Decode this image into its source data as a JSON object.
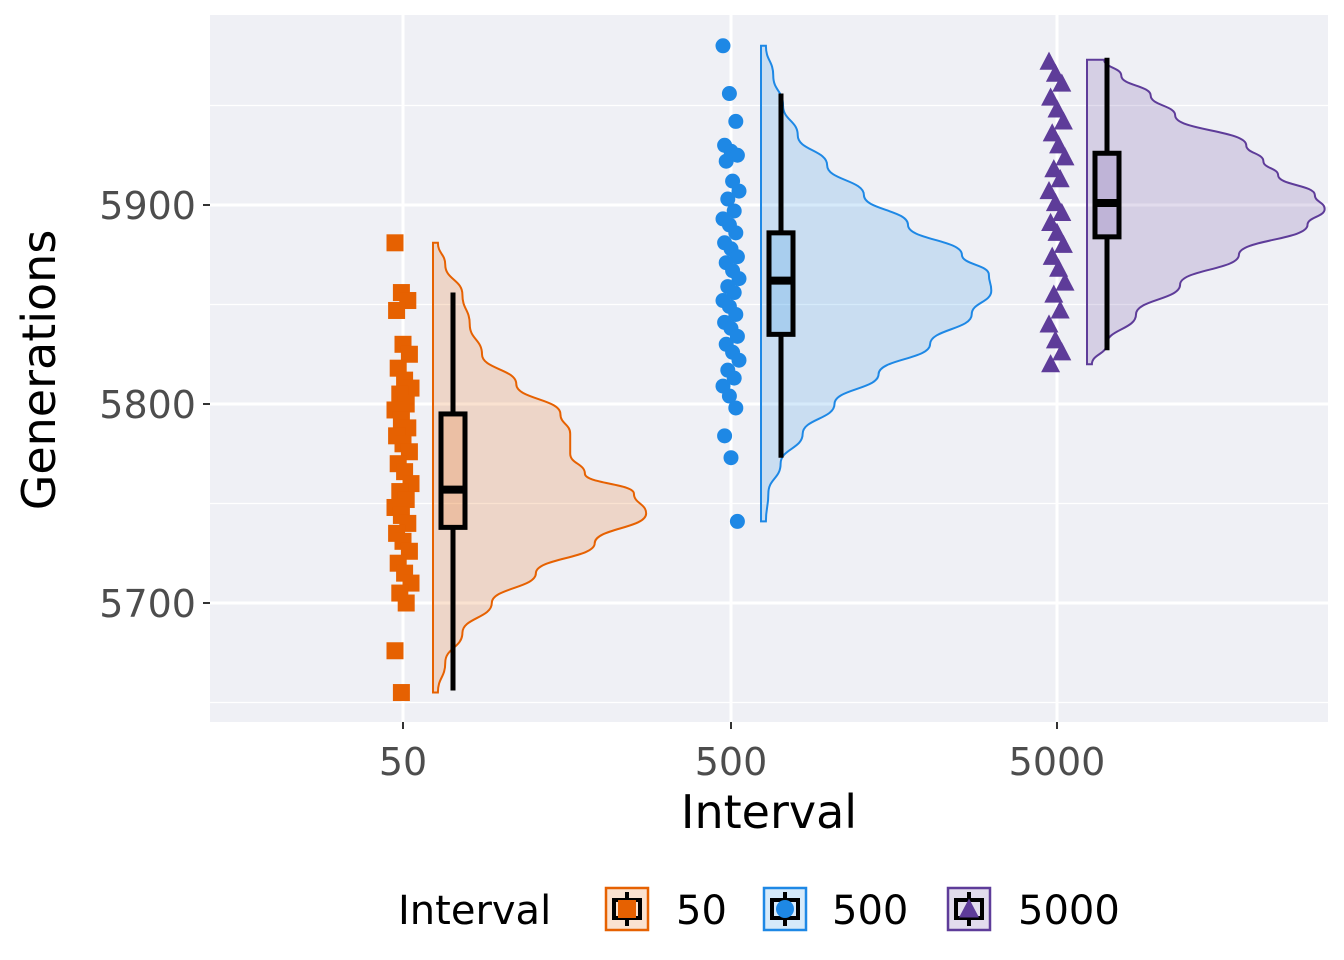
{
  "chart_data": {
    "type": "raincloud",
    "xlabel": "Interval",
    "ylabel": "Generations",
    "categories": [
      "50",
      "500",
      "5000"
    ],
    "y_ticks": [
      5700,
      5800,
      5900
    ],
    "ylim": [
      5640,
      5995
    ],
    "grid": true,
    "legend": {
      "title": "Interval",
      "position": "bottom",
      "entries": [
        "50",
        "500",
        "5000"
      ]
    },
    "series": [
      {
        "name": "50",
        "color": "#e66101",
        "marker": "square",
        "points": [
          5881,
          5856,
          5852,
          5847,
          5830,
          5825,
          5818,
          5812,
          5808,
          5805,
          5800,
          5797,
          5792,
          5788,
          5784,
          5780,
          5776,
          5770,
          5766,
          5760,
          5756,
          5752,
          5748,
          5744,
          5740,
          5735,
          5731,
          5726,
          5720,
          5715,
          5710,
          5705,
          5700,
          5676,
          5655
        ],
        "density": [
          [
            5655,
            0.02
          ],
          [
            5670,
            0.05
          ],
          [
            5685,
            0.12
          ],
          [
            5700,
            0.24
          ],
          [
            5715,
            0.42
          ],
          [
            5730,
            0.66
          ],
          [
            5745,
            0.87
          ],
          [
            5755,
            0.82
          ],
          [
            5765,
            0.62
          ],
          [
            5775,
            0.56
          ],
          [
            5785,
            0.56
          ],
          [
            5795,
            0.52
          ],
          [
            5810,
            0.34
          ],
          [
            5825,
            0.2
          ],
          [
            5840,
            0.15
          ],
          [
            5855,
            0.12
          ],
          [
            5870,
            0.05
          ],
          [
            5881,
            0.02
          ]
        ],
        "box": {
          "min": 5656,
          "q1": 5738,
          "median": 5757,
          "q3": 5795,
          "max": 5856
        }
      },
      {
        "name": "500",
        "color": "#1e88e5",
        "marker": "circle",
        "points": [
          5980,
          5956,
          5942,
          5930,
          5927,
          5925,
          5922,
          5912,
          5907,
          5903,
          5897,
          5893,
          5890,
          5886,
          5881,
          5878,
          5874,
          5871,
          5867,
          5863,
          5859,
          5856,
          5852,
          5849,
          5845,
          5841,
          5838,
          5834,
          5830,
          5826,
          5822,
          5817,
          5813,
          5809,
          5804,
          5798,
          5784,
          5773,
          5741
        ],
        "density": [
          [
            5741,
            0.02
          ],
          [
            5755,
            0.03
          ],
          [
            5770,
            0.08
          ],
          [
            5785,
            0.17
          ],
          [
            5800,
            0.3
          ],
          [
            5815,
            0.48
          ],
          [
            5830,
            0.69
          ],
          [
            5845,
            0.86
          ],
          [
            5857,
            0.94
          ],
          [
            5865,
            0.93
          ],
          [
            5875,
            0.82
          ],
          [
            5890,
            0.6
          ],
          [
            5905,
            0.42
          ],
          [
            5920,
            0.27
          ],
          [
            5935,
            0.15
          ],
          [
            5950,
            0.09
          ],
          [
            5965,
            0.05
          ],
          [
            5980,
            0.02
          ]
        ],
        "box": {
          "min": 5773,
          "q1": 5835,
          "median": 5862,
          "q3": 5886,
          "max": 5956
        }
      },
      {
        "name": "5000",
        "color": "#5e3c99",
        "marker": "triangle",
        "points": [
          5972,
          5966,
          5961,
          5954,
          5948,
          5942,
          5936,
          5930,
          5924,
          5918,
          5913,
          5907,
          5901,
          5896,
          5891,
          5886,
          5880,
          5874,
          5868,
          5861,
          5855,
          5847,
          5840,
          5832,
          5826,
          5820
        ],
        "density": [
          [
            5820,
            0.02
          ],
          [
            5830,
            0.08
          ],
          [
            5845,
            0.2
          ],
          [
            5860,
            0.38
          ],
          [
            5875,
            0.62
          ],
          [
            5890,
            0.9
          ],
          [
            5898,
            0.97
          ],
          [
            5905,
            0.93
          ],
          [
            5915,
            0.78
          ],
          [
            5922,
            0.72
          ],
          [
            5930,
            0.65
          ],
          [
            5945,
            0.36
          ],
          [
            5955,
            0.26
          ],
          [
            5965,
            0.14
          ],
          [
            5973,
            0.07
          ]
        ],
        "box": {
          "min": 5827,
          "q1": 5884,
          "median": 5901,
          "q3": 5926,
          "max": 5974
        }
      }
    ]
  }
}
